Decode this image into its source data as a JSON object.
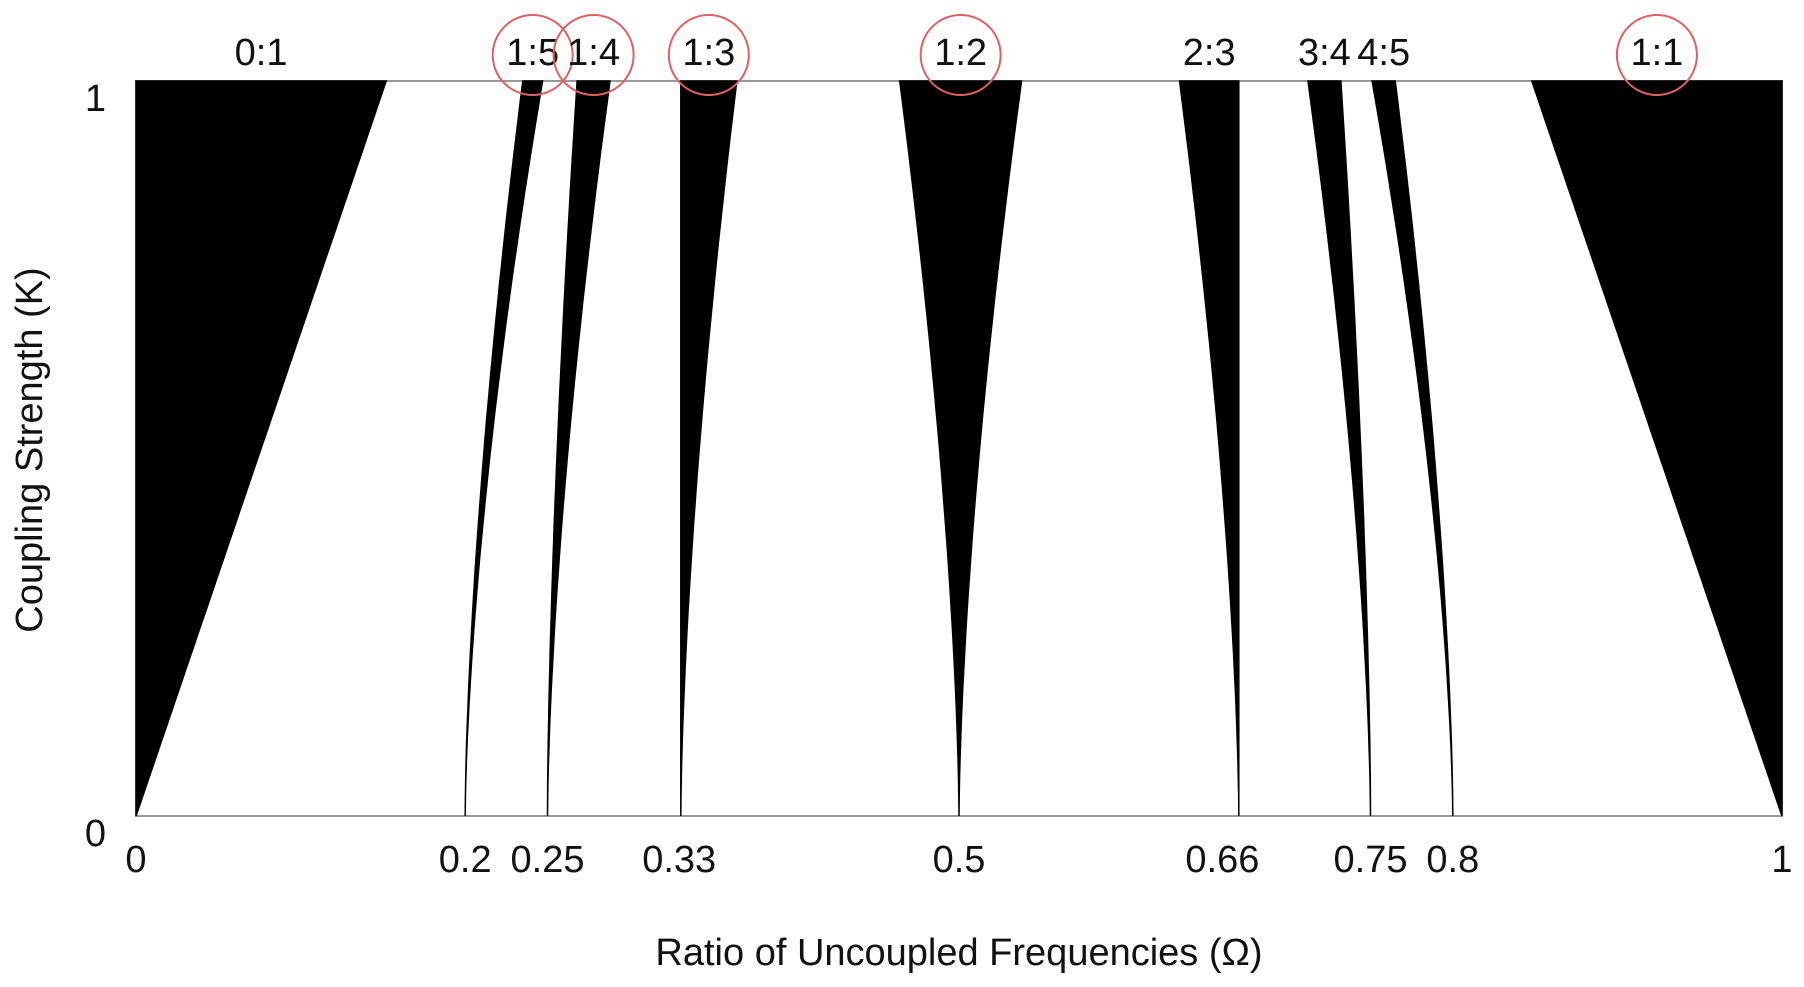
{
  "chart_data": {
    "type": "tongues",
    "xlabel": "Ratio of Uncoupled Frequencies (Ω)",
    "ylabel": "Coupling Strength (K)",
    "xlim": [
      0,
      1
    ],
    "ylim": [
      0,
      1
    ],
    "xticks": [
      0,
      0.2,
      0.25,
      0.33,
      0.5,
      0.66,
      0.75,
      0.8,
      1
    ],
    "yticks": [
      0,
      1
    ],
    "color": "#000000",
    "circle_color": "#e06060",
    "tongues": [
      {
        "label": "0:1",
        "base": 0,
        "top_left": 0,
        "top_right": 0.152,
        "shape": "wedge",
        "circled": false
      },
      {
        "label": "1:5",
        "base": 0.2,
        "top_left": 0.235,
        "top_right": 0.247,
        "shape": "tongue",
        "circled": true
      },
      {
        "label": "1:4",
        "base": 0.25,
        "top_left": 0.268,
        "top_right": 0.288,
        "shape": "tongue",
        "circled": true
      },
      {
        "label": "1:3",
        "base": 0.331,
        "top_left": 0.331,
        "top_right": 0.365,
        "shape": "tongue",
        "circled": true
      },
      {
        "label": "1:2",
        "base": 0.5,
        "top_left": 0.464,
        "top_right": 0.538,
        "shape": "tongue",
        "circled": true
      },
      {
        "label": "2:3",
        "base": 0.67,
        "top_left": 0.634,
        "top_right": 0.67,
        "shape": "tongue",
        "circled": false
      },
      {
        "label": "3:4",
        "base": 0.75,
        "top_left": 0.712,
        "top_right": 0.732,
        "shape": "tongue",
        "circled": false
      },
      {
        "label": "4:5",
        "base": 0.8,
        "top_left": 0.751,
        "top_right": 0.765,
        "shape": "tongue",
        "circled": false
      },
      {
        "label": "1:1",
        "base": 1,
        "top_left": 0.848,
        "top_right": 1,
        "shape": "wedge",
        "circled": true
      }
    ]
  }
}
